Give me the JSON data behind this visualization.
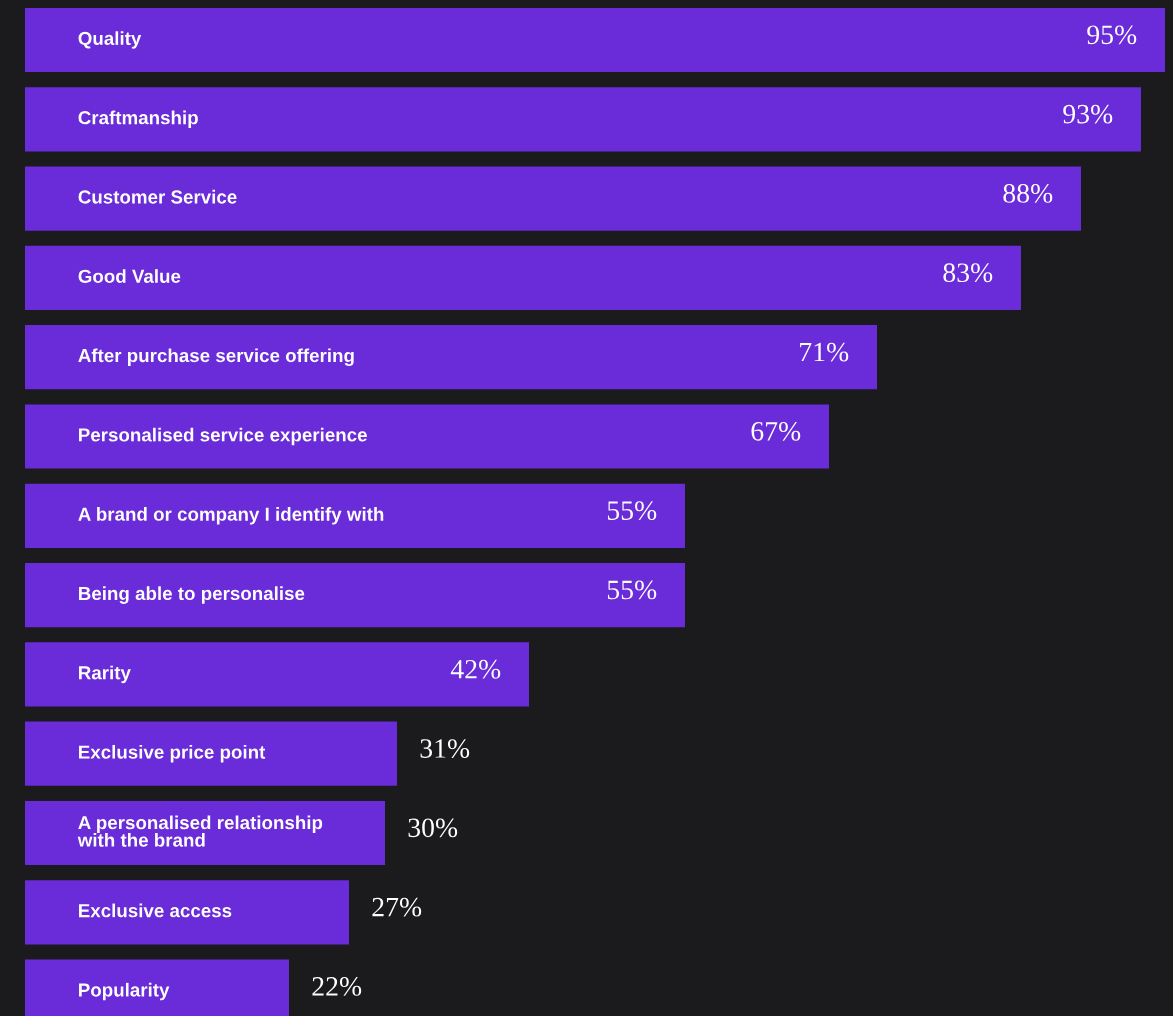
{
  "chart_data": {
    "type": "bar",
    "orientation": "horizontal",
    "data_labels": true,
    "categories": [
      "Quality",
      "Craftmanship",
      "Customer Service",
      "Good Value",
      "After purchase service offering",
      "Personalised service experience",
      "A brand or company I identify with",
      "Being able to personalise",
      "Rarity",
      "Exclusive price point",
      "A personalised relationship\nwith the brand",
      "Exclusive access",
      "Popularity"
    ],
    "values": [
      95,
      93,
      88,
      83,
      71,
      67,
      55,
      55,
      42,
      31,
      30,
      27,
      22
    ],
    "value_labels": [
      "95%",
      "93%",
      "88%",
      "83%",
      "71%",
      "67%",
      "55%",
      "55%",
      "42%",
      "31%",
      "30%",
      "27%",
      "22%"
    ],
    "color": "#6a2bd9"
  }
}
